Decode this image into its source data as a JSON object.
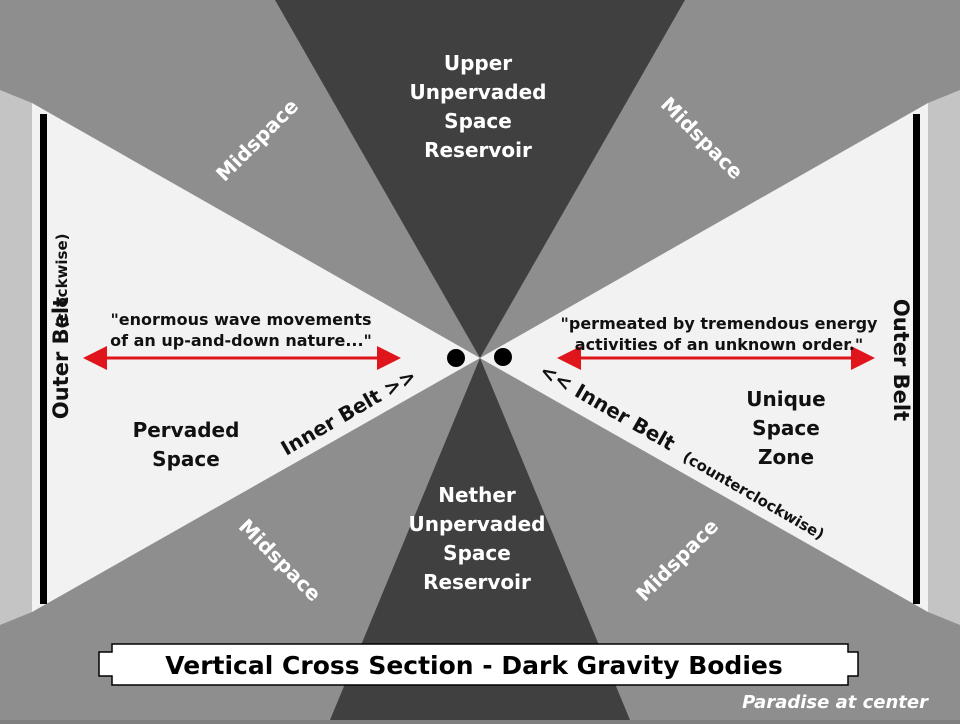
{
  "upper_reservoir": [
    "Upper",
    "Unpervaded",
    "Space",
    "Reservoir"
  ],
  "nether_reservoir": [
    "Nether",
    "Unpervaded",
    "Space",
    "Reservoir"
  ],
  "midspace_label": "Midspace",
  "outer_belt_label": "Outer Belt",
  "clockwise_label": "(clockwise)",
  "counterclockwise_label": "(counterclockwise)",
  "inner_belt_left": "Inner Belt >>",
  "inner_belt_right": "<< Inner Belt",
  "pervaded_space": [
    "Pervaded",
    "Space"
  ],
  "unique_space_zone": [
    "Unique",
    "Space",
    "Zone"
  ],
  "quote_left": [
    "\"enormous wave movements",
    "of an up-and-down nature...\""
  ],
  "quote_right": [
    "\"permeated by tremendous energy",
    "activities of an unknown order.\""
  ],
  "title_banner": "Vertical Cross Section - Dark Gravity Bodies",
  "footer_note": "Paradise at center",
  "colors": {
    "reservoir": "#404040",
    "midspace_inner": "#8e8e8e",
    "midspace_outer": "#a6a6a6",
    "pervaded": "#f2f2f2",
    "outer_band": "#c4c4c4",
    "arrow": "#e0151b",
    "ink": "#000000"
  }
}
